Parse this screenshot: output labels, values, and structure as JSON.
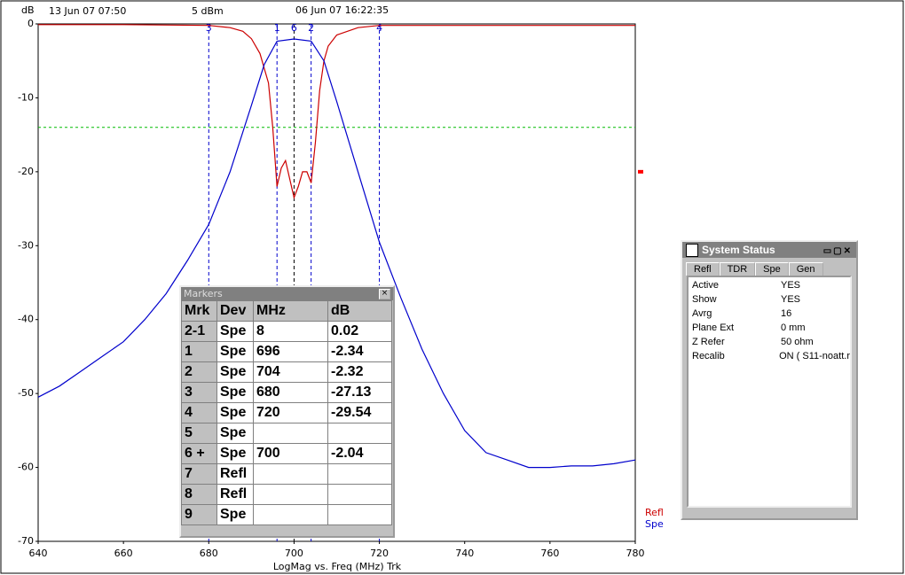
{
  "chart_data": {
    "type": "line",
    "y_label": "dB",
    "x_label": "LogMag vs. Freq (MHz)  Trk",
    "xlim": [
      640,
      780
    ],
    "xticks": [
      640,
      660,
      680,
      700,
      720,
      740,
      760,
      780
    ],
    "ylim": [
      -70,
      0
    ],
    "yticks": [
      0,
      -10,
      -20,
      -30,
      -40,
      -50,
      -60,
      -70
    ],
    "series": [
      {
        "name": "Refl",
        "color": "#cc0000",
        "x": [
          640,
          660,
          680,
          685,
          688,
          690,
          692,
          694,
          695,
          696,
          697,
          698,
          699,
          700,
          701,
          702,
          703,
          704,
          705,
          706,
          707,
          708,
          710,
          715,
          720,
          740,
          760,
          780
        ],
        "values": [
          -0.1,
          -0.1,
          -0.2,
          -0.5,
          -1,
          -2,
          -4,
          -8,
          -14,
          -22,
          -19.5,
          -18.5,
          -21,
          -23.5,
          -22,
          -20,
          -20,
          -21.5,
          -16,
          -9,
          -5,
          -3,
          -1.5,
          -0.5,
          -0.2,
          -0.2,
          -0.2,
          -0.2
        ]
      },
      {
        "name": "Spe",
        "color": "#0000cc",
        "x": [
          640,
          645,
          650,
          655,
          660,
          665,
          670,
          675,
          680,
          685,
          690,
          693,
          696,
          700,
          704,
          707,
          710,
          715,
          720,
          725,
          730,
          735,
          740,
          745,
          750,
          755,
          760,
          765,
          770,
          775,
          780
        ],
        "values": [
          -50.5,
          -49,
          -47,
          -45,
          -43,
          -40,
          -36.5,
          -32,
          -27.13,
          -20,
          -11,
          -5.5,
          -2.34,
          -2.04,
          -2.32,
          -5,
          -10.5,
          -20,
          -29.54,
          -37,
          -44,
          -50,
          -55,
          -58,
          -59,
          -60,
          -60,
          -59.8,
          -59.8,
          -59.5,
          -59
        ]
      }
    ],
    "markers": [
      {
        "label": "3",
        "x": 680
      },
      {
        "label": "1",
        "x": 696
      },
      {
        "label": "6",
        "x": 700
      },
      {
        "label": "2",
        "x": 704
      },
      {
        "label": "4",
        "x": 720
      }
    ],
    "limit_line": -14,
    "reference_level": -20
  },
  "header": {
    "date": "13 Jun 07  07:50",
    "power": "5 dBm",
    "cal_date": "06 Jun 07  16:22:35"
  },
  "markers_window": {
    "title": "Markers",
    "columns": [
      "Mrk",
      "Dev",
      "MHz",
      "dB"
    ],
    "rows": [
      [
        "2-1",
        "Spe",
        8,
        0.02
      ],
      [
        "1",
        "Spe",
        696,
        -2.34
      ],
      [
        "2",
        "Spe",
        704,
        -2.32
      ],
      [
        "3",
        "Spe",
        680,
        -27.13
      ],
      [
        "4",
        "Spe",
        720,
        -29.54
      ],
      [
        "5",
        "Spe"
      ],
      [
        "6 +",
        "Spe",
        700,
        -2.04
      ],
      [
        "7",
        "Refl"
      ],
      [
        "8",
        "Refl"
      ],
      [
        "9",
        "Spe"
      ]
    ]
  },
  "status_window": {
    "title": "System Status",
    "tabs": [
      "Refl",
      "TDR",
      "Spe",
      "Gen"
    ],
    "rows": [
      [
        "Active",
        "YES"
      ],
      [
        "Show",
        "YES"
      ],
      [
        "Avrg",
        "16"
      ],
      [
        "Plane Ext",
        "0 mm"
      ],
      [
        "Z Refer",
        "50 ohm"
      ],
      [
        "Recalib",
        "ON ( S11-noatt.r"
      ]
    ]
  }
}
